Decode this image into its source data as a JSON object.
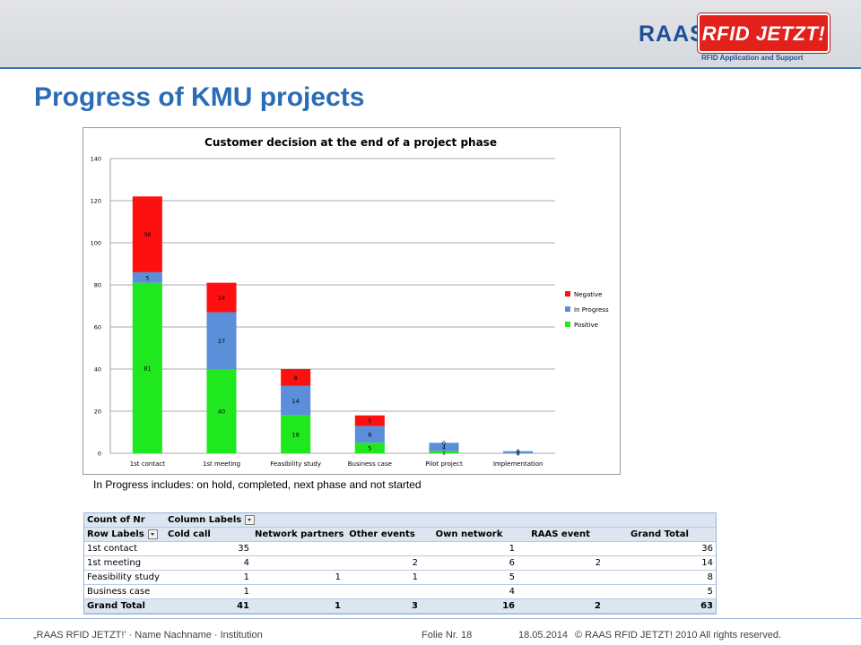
{
  "header": {
    "logo": {
      "left": "RAAS",
      "right": "RFID JETZT!",
      "tagline": "RFID Application and Support"
    }
  },
  "slide": {
    "title": "Progress of KMU projects",
    "note": "In Progress includes: on hold, completed, next phase and not started"
  },
  "chart_data": {
    "type": "bar",
    "stacked": true,
    "title": "Customer decision at the end of a project phase",
    "xlabel": "",
    "ylabel": "",
    "ylim": [
      0,
      140
    ],
    "yticks": [
      0,
      20,
      40,
      60,
      80,
      100,
      120,
      140
    ],
    "grid": true,
    "legend_position": "right",
    "categories": [
      "1st contact",
      "1st meeting",
      "Feasibility study",
      "Business case",
      "Pilot project",
      "Implementation"
    ],
    "series": [
      {
        "name": "Positive",
        "color": "#1fe81f",
        "values": [
          81,
          40,
          18,
          5,
          1,
          0
        ]
      },
      {
        "name": "In Progress",
        "color": "#5b8fd9",
        "values": [
          5,
          27,
          14,
          8,
          4,
          1
        ]
      },
      {
        "name": "Negative",
        "color": "#ff1010",
        "values": [
          36,
          14,
          8,
          5,
          0,
          0
        ]
      }
    ],
    "legend_order": [
      "Negative",
      "In Progress",
      "Positive"
    ]
  },
  "pivot": {
    "corner": "Count of Nr",
    "column_labels": "Column Labels",
    "row_labels": "Row Labels",
    "columns": [
      "Cold call",
      "Network partners",
      "Other events",
      "Own network",
      "RAAS event",
      "Grand Total"
    ],
    "rows": [
      {
        "label": "1st contact",
        "values": [
          "35",
          "",
          "",
          "1",
          "",
          "36"
        ]
      },
      {
        "label": "1st meeting",
        "values": [
          "4",
          "",
          "2",
          "6",
          "2",
          "14"
        ]
      },
      {
        "label": "Feasibility study",
        "values": [
          "1",
          "1",
          "1",
          "5",
          "",
          "8"
        ]
      },
      {
        "label": "Business case",
        "values": [
          "1",
          "",
          "",
          "4",
          "",
          "5"
        ]
      }
    ],
    "total": {
      "label": "Grand Total",
      "values": [
        "41",
        "1",
        "3",
        "16",
        "2",
        "63"
      ]
    }
  },
  "footer": {
    "left": "„RAAS RFID JETZT!’ ·  Name Nachname · Institution",
    "slide_no": "Folie Nr. 18",
    "date": "18.05.2014",
    "copyright": "© RAAS RFID JETZT! 2010 All rights reserved."
  }
}
